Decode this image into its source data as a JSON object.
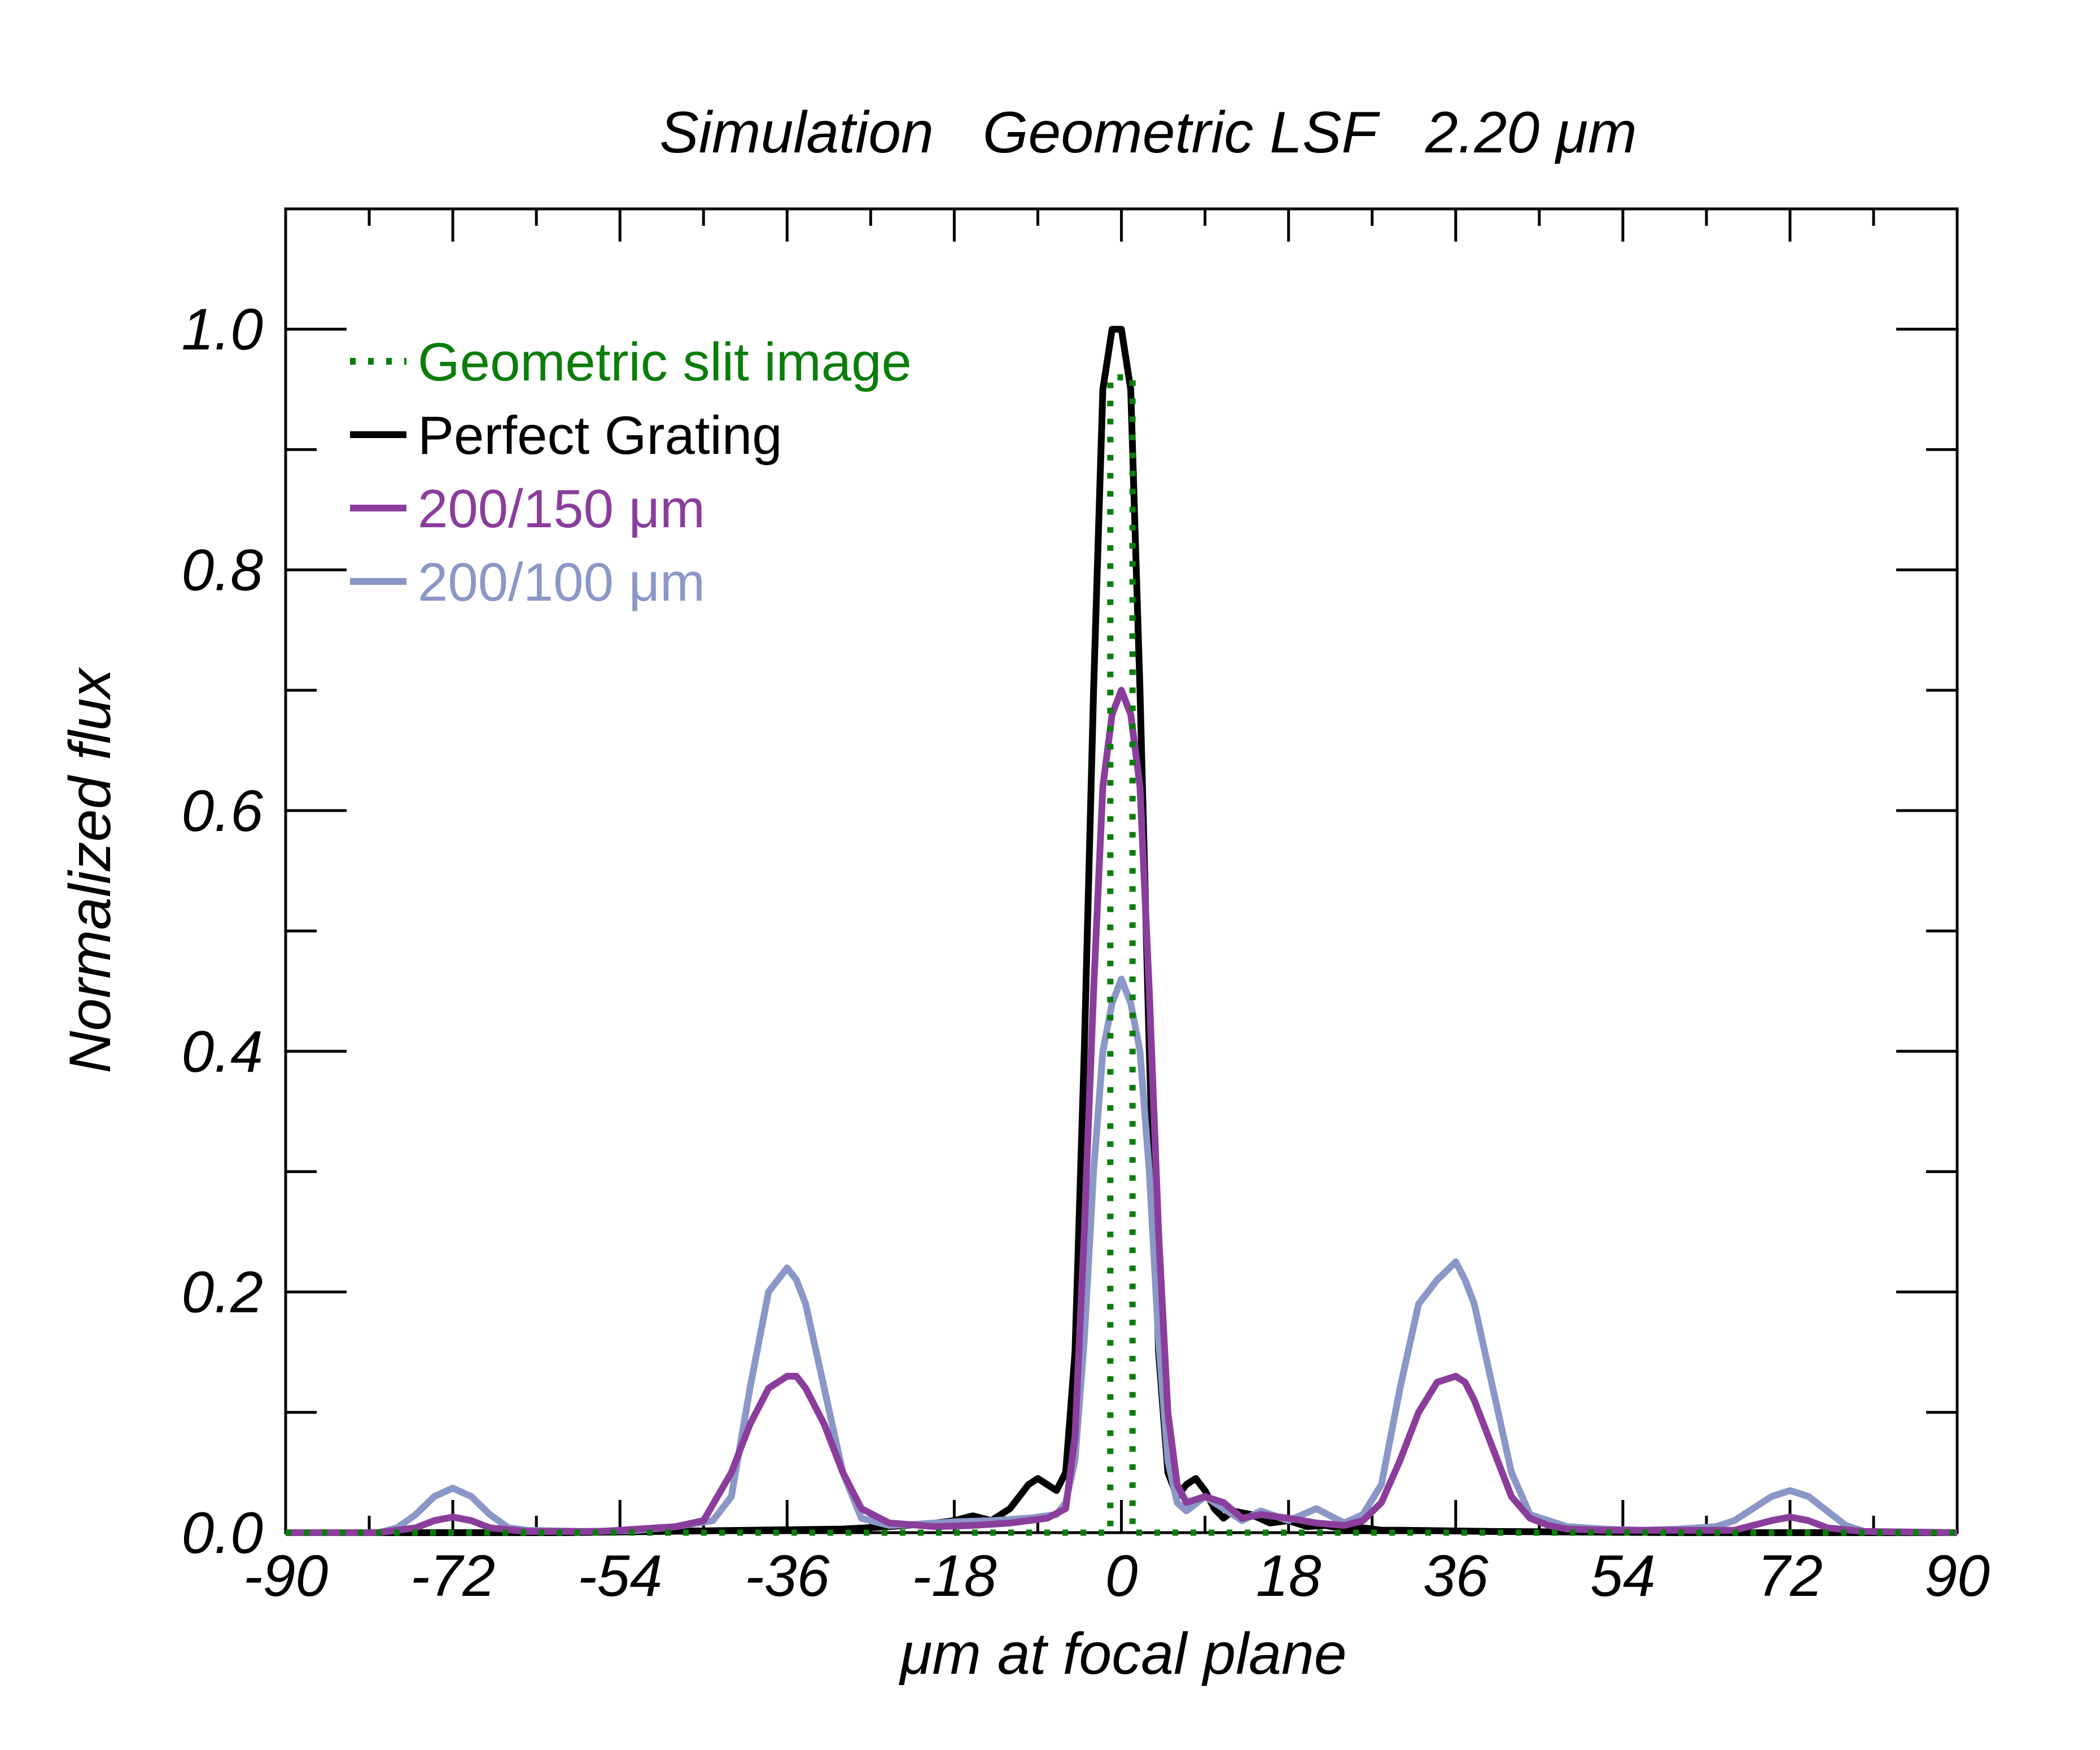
{
  "chart_data": {
    "type": "line",
    "title": "Simulation   Geometric LSF   2.20 μm",
    "xlabel": "μm at focal plane",
    "ylabel": "Normalized flux",
    "xlim": [
      -90,
      90
    ],
    "ylim": [
      0,
      1.1
    ],
    "xticks": [
      -90,
      -72,
      -54,
      -36,
      -18,
      0,
      18,
      36,
      54,
      72,
      90
    ],
    "xtick_labels": [
      "-90",
      "-72",
      "-54",
      "-36",
      "-18",
      "0",
      "18",
      "36",
      "54",
      "72",
      "90"
    ],
    "yticks": [
      0,
      0.2,
      0.4,
      0.6,
      0.8,
      1.0
    ],
    "ytick_labels": [
      "0.0",
      "0.2",
      "0.4",
      "0.6",
      "0.8",
      "1.0"
    ],
    "legend_position": "top-left",
    "series": [
      {
        "name": "Geometric slit image",
        "color": "#0a7d0a",
        "style": "dotted",
        "x": [
          -90,
          -1.2,
          -1.2,
          1.2,
          1.2,
          90
        ],
        "y": [
          0,
          0,
          0.96,
          0.96,
          0,
          0
        ]
      },
      {
        "name": "Perfect Grating",
        "color": "#000000",
        "style": "solid",
        "x": [
          -90,
          -60,
          -40,
          -30,
          -25,
          -20,
          -18,
          -16,
          -14,
          -12,
          -10,
          -9,
          -8,
          -7,
          -6,
          -5,
          -4,
          -3,
          -2,
          -1,
          0,
          1,
          2,
          3,
          4,
          5,
          6,
          7,
          8,
          9,
          10,
          11,
          12,
          14,
          16,
          18,
          20,
          22,
          24,
          26,
          28,
          30,
          40,
          60,
          90
        ],
        "y": [
          0,
          0,
          0.002,
          0.003,
          0.005,
          0.008,
          0.01,
          0.014,
          0.01,
          0.02,
          0.04,
          0.045,
          0.04,
          0.035,
          0.05,
          0.15,
          0.4,
          0.7,
          0.95,
          1.0,
          1.0,
          0.95,
          0.7,
          0.4,
          0.15,
          0.05,
          0.03,
          0.04,
          0.045,
          0.035,
          0.02,
          0.012,
          0.018,
          0.015,
          0.008,
          0.01,
          0.005,
          0.006,
          0.003,
          0.004,
          0.002,
          0.002,
          0.001,
          0,
          0
        ]
      },
      {
        "name": "200/150 μm",
        "color": "#8b3d9c",
        "style": "solid",
        "x": [
          -90,
          -80,
          -76,
          -74,
          -72,
          -70,
          -68,
          -64,
          -56,
          -48,
          -45,
          -42,
          -40,
          -38,
          -36,
          -35,
          -34,
          -32,
          -30,
          -28,
          -25,
          -20,
          -16,
          -12,
          -8,
          -6,
          -5,
          -4,
          -3,
          -2,
          -1,
          0,
          1,
          2,
          3,
          4,
          5,
          6,
          7,
          9,
          11,
          13,
          15,
          18,
          21,
          24,
          26,
          28,
          30,
          32,
          34,
          36,
          37,
          38,
          40,
          42,
          44,
          46,
          48,
          52,
          60,
          66,
          68,
          70,
          72,
          74,
          76,
          80,
          90
        ],
        "y": [
          0,
          0,
          0.004,
          0.01,
          0.013,
          0.01,
          0.004,
          0.001,
          0.001,
          0.005,
          0.01,
          0.05,
          0.09,
          0.12,
          0.13,
          0.13,
          0.12,
          0.09,
          0.05,
          0.02,
          0.008,
          0.005,
          0.006,
          0.008,
          0.012,
          0.02,
          0.08,
          0.25,
          0.45,
          0.62,
          0.68,
          0.7,
          0.68,
          0.62,
          0.45,
          0.25,
          0.1,
          0.04,
          0.025,
          0.03,
          0.025,
          0.012,
          0.015,
          0.012,
          0.008,
          0.006,
          0.01,
          0.025,
          0.06,
          0.1,
          0.125,
          0.13,
          0.125,
          0.11,
          0.07,
          0.03,
          0.012,
          0.006,
          0.003,
          0.002,
          0.002,
          0.002,
          0.006,
          0.01,
          0.013,
          0.01,
          0.004,
          0.001,
          0
        ]
      },
      {
        "name": "200/100 μm",
        "color": "#8a97c7",
        "style": "solid",
        "x": [
          -90,
          -80,
          -78,
          -76,
          -74,
          -72,
          -70,
          -68,
          -66,
          -64,
          -58,
          -52,
          -48,
          -44,
          -42,
          -40,
          -38,
          -36,
          -35,
          -34,
          -32,
          -30,
          -28,
          -25,
          -22,
          -18,
          -14,
          -10,
          -7,
          -6,
          -5,
          -4,
          -3,
          -2,
          -1,
          0,
          1,
          2,
          3,
          4,
          5,
          6,
          7,
          9,
          11,
          13,
          15,
          18,
          21,
          24,
          26,
          28,
          30,
          32,
          34,
          36,
          37,
          38,
          40,
          42,
          44,
          46,
          48,
          52,
          56,
          60,
          64,
          66,
          68,
          70,
          72,
          74,
          76,
          78,
          80,
          90
        ],
        "y": [
          0,
          0,
          0.004,
          0.015,
          0.03,
          0.037,
          0.03,
          0.015,
          0.004,
          0.002,
          0.001,
          0.002,
          0.005,
          0.01,
          0.03,
          0.12,
          0.2,
          0.22,
          0.21,
          0.19,
          0.12,
          0.05,
          0.012,
          0.006,
          0.007,
          0.009,
          0.01,
          0.012,
          0.015,
          0.025,
          0.06,
          0.16,
          0.3,
          0.4,
          0.44,
          0.46,
          0.44,
          0.4,
          0.3,
          0.16,
          0.06,
          0.025,
          0.018,
          0.03,
          0.02,
          0.01,
          0.018,
          0.01,
          0.02,
          0.008,
          0.015,
          0.04,
          0.12,
          0.19,
          0.21,
          0.225,
          0.21,
          0.19,
          0.12,
          0.05,
          0.015,
          0.01,
          0.005,
          0.003,
          0.002,
          0.003,
          0.005,
          0.01,
          0.02,
          0.03,
          0.035,
          0.03,
          0.018,
          0.006,
          0.001,
          0
        ]
      }
    ]
  }
}
